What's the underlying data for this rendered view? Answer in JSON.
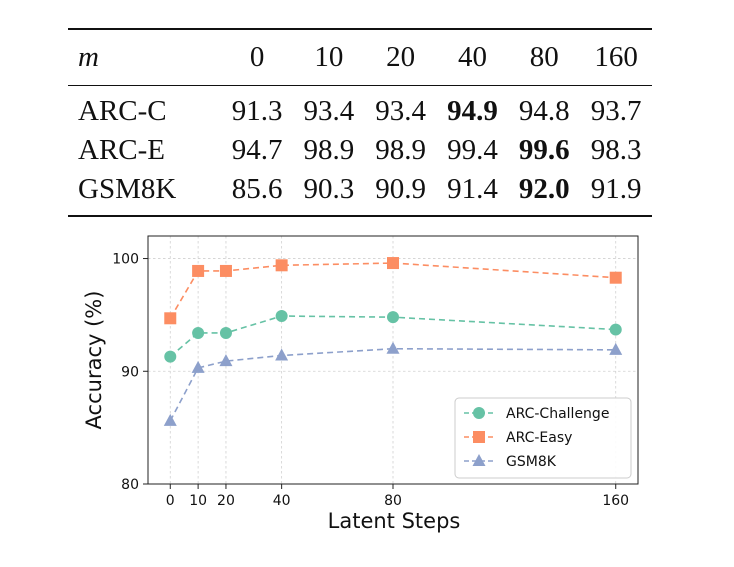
{
  "table": {
    "m_label": "m",
    "columns": [
      "0",
      "10",
      "20",
      "40",
      "80",
      "160"
    ],
    "rows": [
      {
        "label": "ARC-C",
        "values": [
          "91.3",
          "93.4",
          "93.4",
          "94.9",
          "94.8",
          "93.7"
        ],
        "best_index": 3
      },
      {
        "label": "ARC-E",
        "values": [
          "94.7",
          "98.9",
          "98.9",
          "99.4",
          "99.6",
          "98.3"
        ],
        "best_index": 4
      },
      {
        "label": "GSM8K",
        "values": [
          "85.6",
          "90.3",
          "90.9",
          "91.4",
          "92.0",
          "91.9"
        ],
        "best_index": 4
      }
    ]
  },
  "chart_data": {
    "type": "line",
    "title": "",
    "xlabel": "Latent Steps",
    "ylabel": "Accuracy (%)",
    "x": [
      0,
      10,
      20,
      40,
      80,
      160
    ],
    "xticks": [
      0,
      10,
      20,
      40,
      80,
      160
    ],
    "yticks": [
      80,
      90,
      100
    ],
    "xlim": [
      -8,
      168
    ],
    "ylim": [
      80,
      102
    ],
    "grid": true,
    "legend_position": "lower-right",
    "series": [
      {
        "name": "ARC-Challenge",
        "values": [
          91.3,
          93.4,
          93.4,
          94.9,
          94.8,
          93.7
        ],
        "color": "#66c2a5",
        "marker": "circle"
      },
      {
        "name": "ARC-Easy",
        "values": [
          94.7,
          98.9,
          98.9,
          99.4,
          99.6,
          98.3
        ],
        "color": "#fc8d62",
        "marker": "square"
      },
      {
        "name": "GSM8K",
        "values": [
          85.6,
          90.3,
          90.9,
          91.4,
          92.0,
          91.9
        ],
        "color": "#8da0cb",
        "marker": "triangle"
      }
    ]
  }
}
